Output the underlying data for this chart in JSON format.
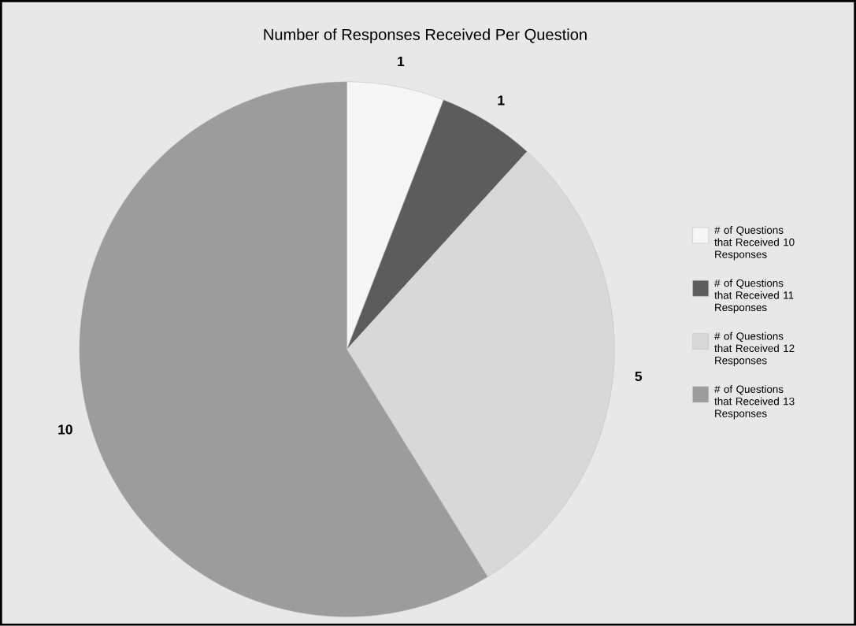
{
  "chart_data": {
    "type": "pie",
    "title": "Number of Responses Received Per Question",
    "categories": [
      "# of Questions that Received 10 Responses",
      "# of Questions that Received 11 Responses",
      "# of Questions that Received 12 Responses",
      "# of Questions that Received 13 Responses"
    ],
    "values": [
      1,
      1,
      5,
      10
    ],
    "colors": [
      "#f6f6f6",
      "#5c5c5c",
      "#d8d8d8",
      "#9c9c9c"
    ],
    "data_labels": true,
    "legend": "right"
  }
}
